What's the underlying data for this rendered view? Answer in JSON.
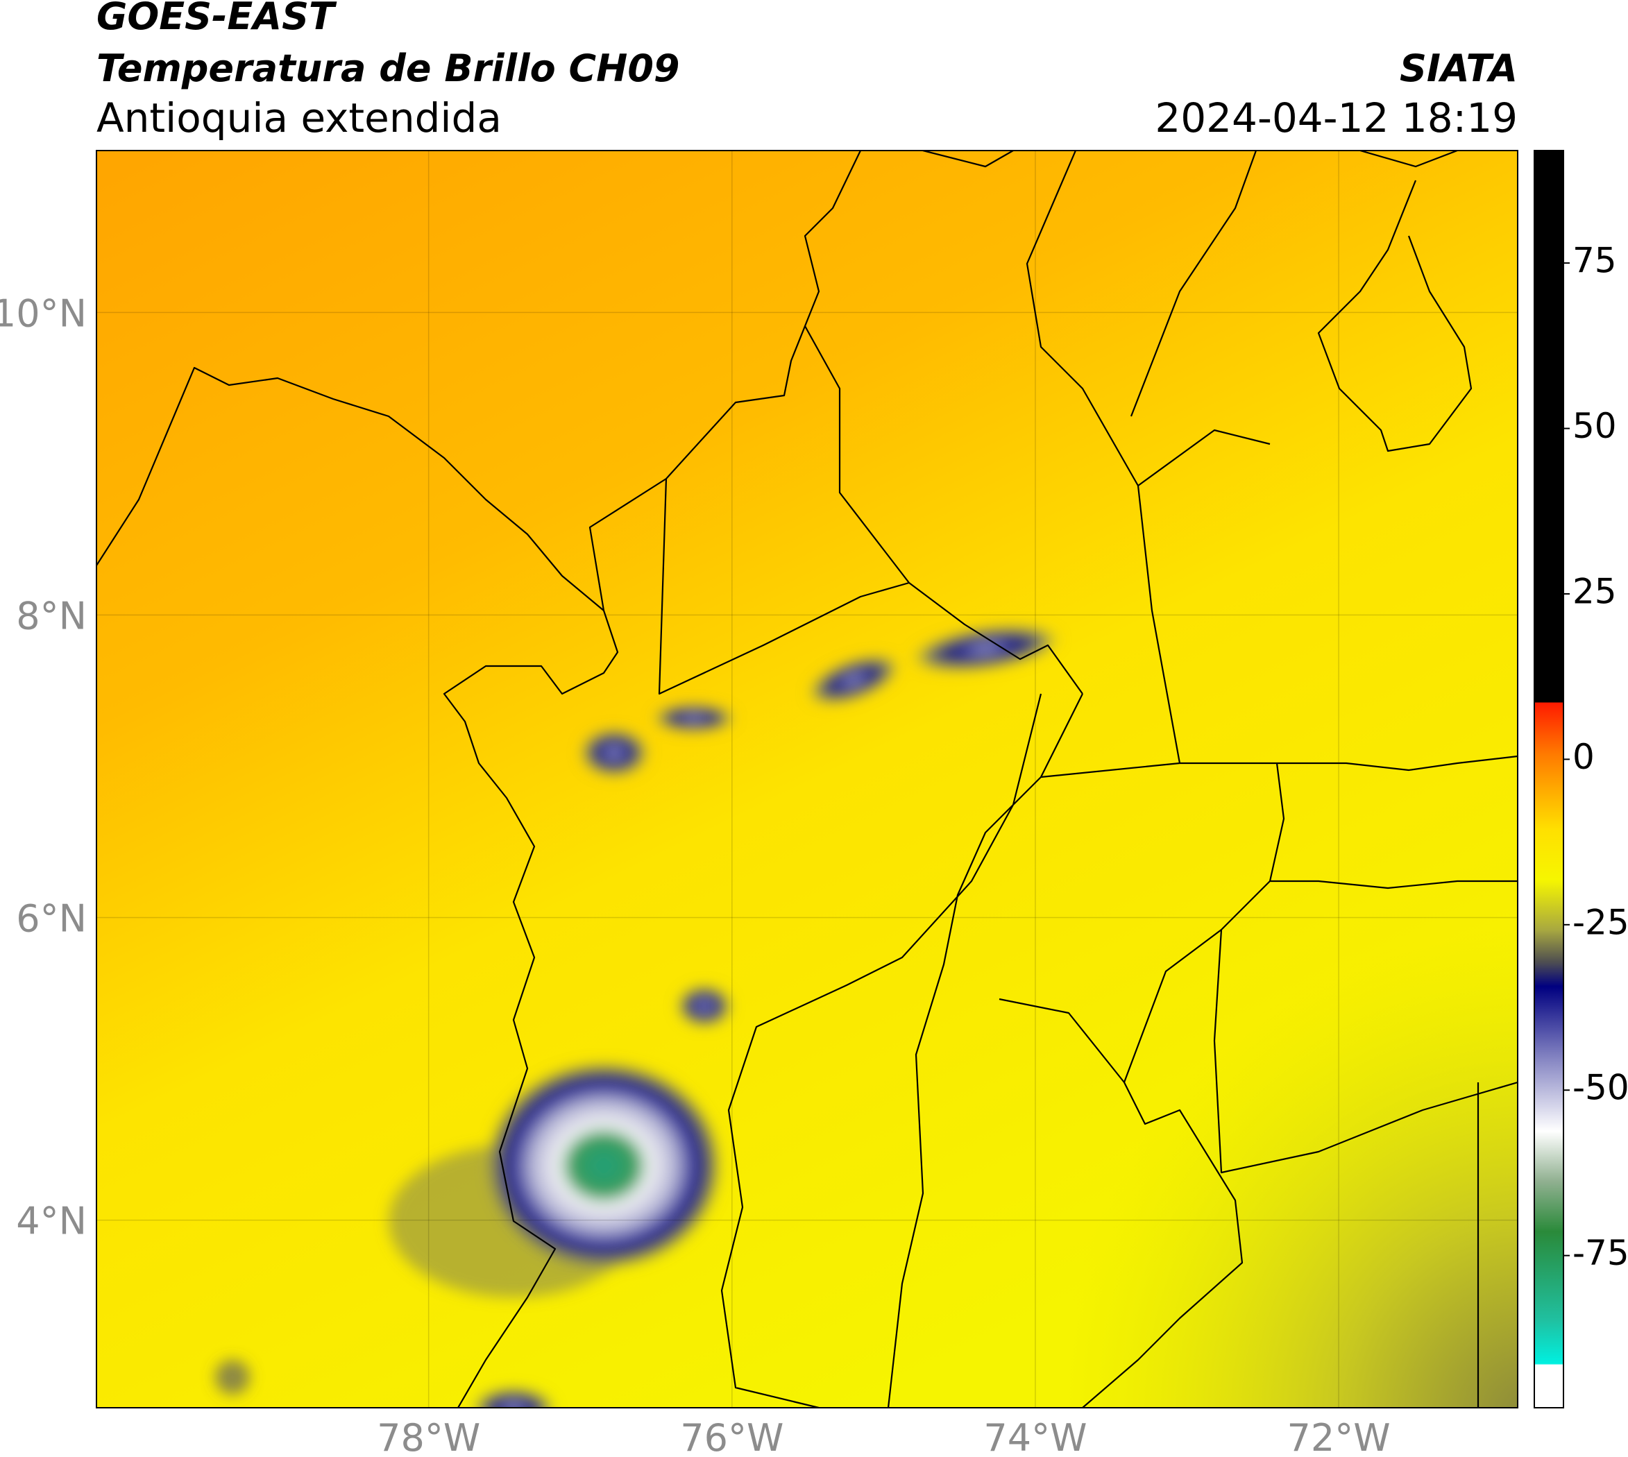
{
  "header": {
    "source": "GOES-EAST",
    "title": "Temperatura de Brillo CH09",
    "region": "Antioquia extendida",
    "organization": "SIATA",
    "datetime": "2024-04-12 18:19"
  },
  "chart_data": {
    "type": "map",
    "xlim": [
      -80.19,
      -70.82
    ],
    "ylim": [
      2.76,
      11.07
    ],
    "xticks": [
      {
        "value": -78,
        "label": "78°W"
      },
      {
        "value": -76,
        "label": "76°W"
      },
      {
        "value": -74,
        "label": "74°W"
      },
      {
        "value": -72,
        "label": "72°W"
      }
    ],
    "yticks": [
      {
        "value": 4,
        "label": "4°N"
      },
      {
        "value": 6,
        "label": "6°N"
      },
      {
        "value": 8,
        "label": "8°N"
      },
      {
        "value": 10,
        "label": "10°N"
      }
    ],
    "grid": true,
    "clim": [
      -98,
      92
    ],
    "cticks": [
      -75,
      -50,
      -25,
      0,
      25,
      50,
      75
    ]
  }
}
